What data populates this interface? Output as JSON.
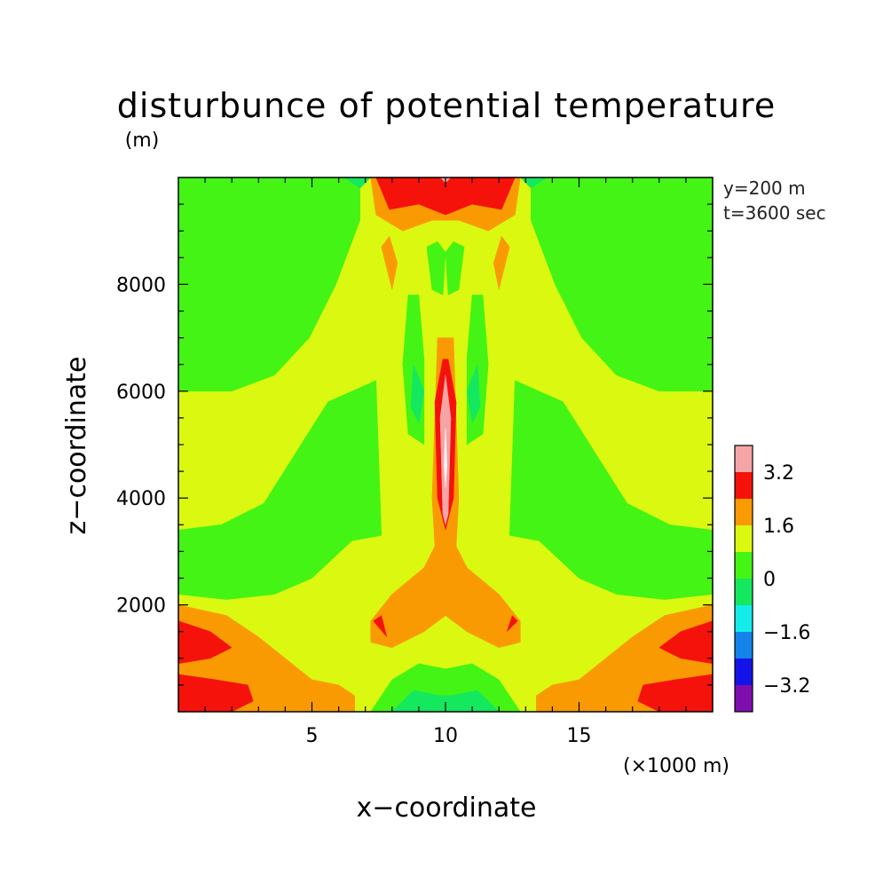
{
  "chart_data": {
    "type": "heatmap",
    "title": "disturbunce of potential temperature",
    "ylabel_unit": "(m)",
    "xlabel": "x−coordinate",
    "ylabel": "z−coordinate",
    "xunit": "(×1000 m)",
    "annotations": [
      "y=200 m",
      "t=3600 sec"
    ],
    "xlim": [
      0,
      20
    ],
    "ylim": [
      0,
      10000
    ],
    "xticks": [
      5,
      10,
      15
    ],
    "xtick_labels": [
      "5",
      "10",
      "15"
    ],
    "yticks": [
      2000,
      4000,
      6000,
      8000
    ],
    "ytick_labels": [
      "2000",
      "4000",
      "6000",
      "8000"
    ],
    "colorbar": {
      "bins": [
        {
          "range": [
            -4.0,
            -3.2
          ],
          "color": "#7e0fae"
        },
        {
          "range": [
            -3.2,
            -2.4
          ],
          "color": "#1414e8"
        },
        {
          "range": [
            -2.4,
            -1.6
          ],
          "color": "#1484ea"
        },
        {
          "range": [
            -1.6,
            -0.8
          ],
          "color": "#14ecea"
        },
        {
          "range": [
            -0.8,
            0.0
          ],
          "color": "#14e85f"
        },
        {
          "range": [
            0.0,
            0.8
          ],
          "color": "#44f414"
        },
        {
          "range": [
            0.8,
            1.6
          ],
          "color": "#daf810"
        },
        {
          "range": [
            1.6,
            2.4
          ],
          "color": "#fa9a02"
        },
        {
          "range": [
            2.4,
            3.2
          ],
          "color": "#f5120b"
        },
        {
          "range": [
            3.2,
            4.0
          ],
          "color": "#f5a5a5"
        }
      ],
      "labels": [
        "3.2",
        "1.6",
        "0",
        "−1.6",
        "−3.2"
      ],
      "label_values": [
        3.2,
        1.6,
        0,
        -1.6,
        -3.2
      ]
    },
    "regions": [
      {
        "level": 0.4,
        "color": "#44f414",
        "polys": [
          [
            [
              0,
              10000
            ],
            [
              6.8,
              10000
            ],
            [
              6.8,
              9200
            ],
            [
              5.9,
              8000
            ],
            [
              4.9,
              7000
            ],
            [
              3.6,
              6300
            ],
            [
              2.0,
              6000
            ],
            [
              0,
              6000
            ]
          ]
        ]
      },
      {
        "level": 0.4,
        "color": "#44f414",
        "polys": [
          [
            [
              20,
              10000
            ],
            [
              13.2,
              10000
            ],
            [
              13.2,
              9200
            ],
            [
              14.1,
              8000
            ],
            [
              15.1,
              7000
            ],
            [
              16.4,
              6300
            ],
            [
              18.0,
              6000
            ],
            [
              20,
              6000
            ]
          ]
        ]
      },
      {
        "level": 0.4,
        "color": "#44f414",
        "polys": [
          [
            [
              0,
              3400
            ],
            [
              1.6,
              3500
            ],
            [
              3.2,
              3900
            ],
            [
              5.6,
              5800
            ],
            [
              7.4,
              6200
            ],
            [
              7.6,
              3300
            ],
            [
              6.5,
              3200
            ],
            [
              5.0,
              2500
            ],
            [
              3.6,
              2200
            ],
            [
              1.8,
              2100
            ],
            [
              0,
              2200
            ]
          ]
        ]
      },
      {
        "level": 0.4,
        "color": "#44f414",
        "polys": [
          [
            [
              20,
              3400
            ],
            [
              18.4,
              3500
            ],
            [
              16.8,
              3900
            ],
            [
              14.4,
              5800
            ],
            [
              12.6,
              6200
            ],
            [
              12.4,
              3300
            ],
            [
              13.5,
              3200
            ],
            [
              15.0,
              2500
            ],
            [
              16.4,
              2200
            ],
            [
              18.2,
              2100
            ],
            [
              20,
              2200
            ]
          ]
        ]
      },
      {
        "level": 0.4,
        "color": "#44f414",
        "polys": [
          [
            [
              8.6,
              7800
            ],
            [
              8.4,
              6500
            ],
            [
              8.6,
              5200
            ],
            [
              9.2,
              5000
            ],
            [
              9.2,
              6600
            ],
            [
              9.0,
              7800
            ]
          ]
        ]
      },
      {
        "level": 0.4,
        "color": "#44f414",
        "polys": [
          [
            [
              11.4,
              7800
            ],
            [
              11.6,
              6500
            ],
            [
              11.4,
              5200
            ],
            [
              10.8,
              5000
            ],
            [
              10.8,
              6600
            ],
            [
              11.0,
              7800
            ]
          ]
        ]
      },
      {
        "level": 0.4,
        "color": "#44f414",
        "polys": [
          [
            [
              9.3,
              8700
            ],
            [
              9.5,
              7900
            ],
            [
              9.9,
              7800
            ],
            [
              10.0,
              8600
            ],
            [
              9.7,
              8800
            ]
          ]
        ]
      },
      {
        "level": 0.4,
        "color": "#44f414",
        "polys": [
          [
            [
              10.7,
              8700
            ],
            [
              10.5,
              7900
            ],
            [
              10.1,
              7800
            ],
            [
              10.0,
              8600
            ],
            [
              10.3,
              8800
            ]
          ]
        ]
      },
      {
        "level": 0.4,
        "color": "#44f414",
        "polys": [
          [
            [
              7.2,
              0
            ],
            [
              8.0,
              600
            ],
            [
              9.0,
              900
            ],
            [
              10.0,
              800
            ],
            [
              11.0,
              900
            ],
            [
              12.0,
              600
            ],
            [
              12.8,
              0
            ]
          ]
        ]
      },
      {
        "level": -0.4,
        "color": "#14e85f",
        "polys": [
          [
            [
              8.8,
              6500
            ],
            [
              8.7,
              5700
            ],
            [
              9.0,
              5400
            ],
            [
              9.2,
              6000
            ]
          ]
        ]
      },
      {
        "level": -0.4,
        "color": "#14e85f",
        "polys": [
          [
            [
              11.2,
              6500
            ],
            [
              11.3,
              5700
            ],
            [
              11.0,
              5400
            ],
            [
              10.8,
              6000
            ]
          ]
        ]
      },
      {
        "level": -0.4,
        "color": "#14e85f",
        "polys": [
          [
            [
              8.0,
              0
            ],
            [
              8.8,
              400
            ],
            [
              9.8,
              300
            ],
            [
              10.2,
              300
            ],
            [
              11.2,
              400
            ],
            [
              12.0,
              0
            ]
          ]
        ]
      },
      {
        "level": -0.4,
        "color": "#14e85f",
        "polys": [
          [
            [
              6.2,
              10000
            ],
            [
              6.8,
              9800
            ],
            [
              7.2,
              10000
            ]
          ]
        ]
      },
      {
        "level": -0.4,
        "color": "#14e85f",
        "polys": [
          [
            [
              13.8,
              10000
            ],
            [
              13.2,
              9800
            ],
            [
              12.8,
              10000
            ]
          ]
        ]
      },
      {
        "level": 2.0,
        "color": "#fa9a02",
        "polys": [
          [
            [
              7.2,
              10000
            ],
            [
              7.4,
              9300
            ],
            [
              8.4,
              9000
            ],
            [
              9.5,
              9200
            ],
            [
              10.5,
              9200
            ],
            [
              11.6,
              9000
            ],
            [
              12.6,
              9300
            ],
            [
              12.8,
              10000
            ]
          ]
        ]
      },
      {
        "level": 2.0,
        "color": "#fa9a02",
        "polys": [
          [
            [
              7.6,
              8700
            ],
            [
              8.0,
              7900
            ],
            [
              8.2,
              8400
            ],
            [
              7.9,
              8900
            ]
          ]
        ]
      },
      {
        "level": 2.0,
        "color": "#fa9a02",
        "polys": [
          [
            [
              12.4,
              8700
            ],
            [
              12.0,
              7900
            ],
            [
              11.8,
              8400
            ],
            [
              12.1,
              8900
            ]
          ]
        ]
      },
      {
        "level": 2.0,
        "color": "#fa9a02",
        "polys": [
          [
            [
              9.7,
              7000
            ],
            [
              9.5,
              4000
            ],
            [
              9.6,
              3100
            ],
            [
              9.2,
              2700
            ],
            [
              8.0,
              2200
            ],
            [
              7.2,
              1700
            ],
            [
              7.2,
              1300
            ],
            [
              8.0,
              1200
            ],
            [
              9.2,
              1500
            ],
            [
              10.0,
              1800
            ],
            [
              10.8,
              1500
            ],
            [
              12.0,
              1200
            ],
            [
              12.8,
              1300
            ],
            [
              12.8,
              1700
            ],
            [
              12.0,
              2200
            ],
            [
              10.8,
              2700
            ],
            [
              10.4,
              3100
            ],
            [
              10.5,
              4000
            ],
            [
              10.3,
              7000
            ]
          ]
        ]
      },
      {
        "level": 2.0,
        "color": "#fa9a02",
        "polys": [
          [
            [
              0,
              2000
            ],
            [
              1.8,
              1800
            ],
            [
              3.0,
              1400
            ],
            [
              4.0,
              1000
            ],
            [
              5.0,
              600
            ],
            [
              6.0,
              500
            ],
            [
              6.6,
              300
            ],
            [
              6.6,
              0
            ],
            [
              0,
              0
            ]
          ]
        ]
      },
      {
        "level": 2.0,
        "color": "#fa9a02",
        "polys": [
          [
            [
              20,
              2000
            ],
            [
              18.2,
              1800
            ],
            [
              17.0,
              1400
            ],
            [
              16.0,
              1000
            ],
            [
              15.0,
              600
            ],
            [
              14.0,
              500
            ],
            [
              13.4,
              300
            ],
            [
              13.4,
              0
            ],
            [
              20,
              0
            ]
          ]
        ]
      },
      {
        "level": 2.8,
        "color": "#f5120b",
        "polys": [
          [
            [
              7.4,
              10000
            ],
            [
              7.9,
              9400
            ],
            [
              9.0,
              9500
            ],
            [
              10.0,
              9300
            ],
            [
              11.0,
              9500
            ],
            [
              12.1,
              9400
            ],
            [
              12.6,
              10000
            ]
          ]
        ]
      },
      {
        "level": 2.8,
        "color": "#f5120b",
        "polys": [
          [
            [
              9.9,
              6600
            ],
            [
              9.6,
              5800
            ],
            [
              9.7,
              4000
            ],
            [
              10.0,
              3400
            ],
            [
              10.3,
              4000
            ],
            [
              10.4,
              5800
            ],
            [
              10.1,
              6600
            ]
          ]
        ]
      },
      {
        "level": 2.8,
        "color": "#f5120b",
        "polys": [
          [
            [
              7.3,
              1700
            ],
            [
              7.8,
              1400
            ],
            [
              7.6,
              1800
            ]
          ]
        ]
      },
      {
        "level": 2.8,
        "color": "#f5120b",
        "polys": [
          [
            [
              12.7,
              1700
            ],
            [
              12.3,
              1500
            ],
            [
              12.5,
              1800
            ]
          ]
        ]
      },
      {
        "level": 2.8,
        "color": "#f5120b",
        "polys": [
          [
            [
              0,
              1700
            ],
            [
              1.2,
              1500
            ],
            [
              2.0,
              1200
            ],
            [
              1.2,
              1000
            ],
            [
              0,
              900
            ]
          ]
        ]
      },
      {
        "level": 2.8,
        "color": "#f5120b",
        "polys": [
          [
            [
              20,
              1700
            ],
            [
              18.8,
              1500
            ],
            [
              18.0,
              1200
            ],
            [
              18.8,
              1000
            ],
            [
              20,
              900
            ]
          ]
        ]
      },
      {
        "level": 2.8,
        "color": "#f5120b",
        "polys": [
          [
            [
              0,
              700
            ],
            [
              1.4,
              600
            ],
            [
              2.6,
              500
            ],
            [
              2.8,
              200
            ],
            [
              2.0,
              0
            ],
            [
              0,
              0
            ]
          ]
        ]
      },
      {
        "level": 2.8,
        "color": "#f5120b",
        "polys": [
          [
            [
              20,
              700
            ],
            [
              18.6,
              600
            ],
            [
              17.4,
              500
            ],
            [
              17.2,
              200
            ],
            [
              18.0,
              0
            ],
            [
              20,
              0
            ]
          ]
        ]
      },
      {
        "level": 3.6,
        "color": "#f5a5a5",
        "polys": [
          [
            [
              10.0,
              6300
            ],
            [
              9.8,
              5500
            ],
            [
              9.9,
              3700
            ],
            [
              10.0,
              3500
            ],
            [
              10.1,
              3700
            ],
            [
              10.2,
              5500
            ]
          ]
        ]
      },
      {
        "level": 3.6,
        "color": "#f5a5a5",
        "polys": [
          [
            [
              9.8,
              10000
            ],
            [
              10.0,
              9900
            ],
            [
              10.2,
              10000
            ]
          ]
        ]
      },
      {
        "level": 4.2,
        "color": "#ffffff",
        "polys": [
          [
            [
              10.0,
              5300
            ],
            [
              9.95,
              4600
            ],
            [
              10.0,
              4200
            ],
            [
              10.05,
              4600
            ]
          ]
        ]
      }
    ],
    "plot_background": {
      "level": 1.2,
      "color": "#daf810"
    }
  }
}
